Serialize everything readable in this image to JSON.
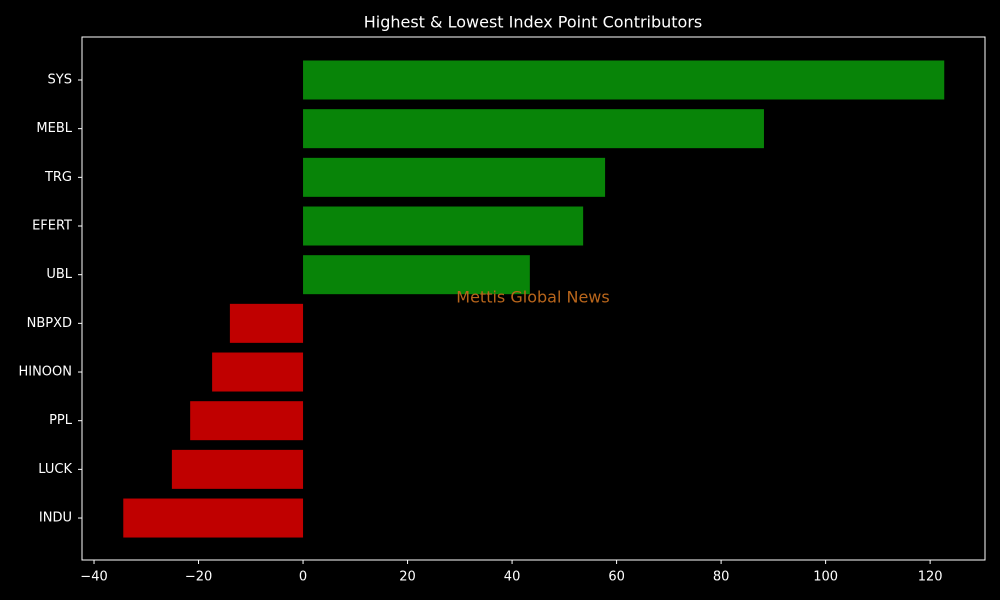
{
  "chart_data": {
    "type": "barh",
    "title": "Highest & Lowest Index Point Contributors",
    "annotation": "Mettis Global News",
    "categories": [
      "SYS",
      "MEBL",
      "TRG",
      "EFERT",
      "UBL",
      "NBPXD",
      "HINOON",
      "PPL",
      "LUCK",
      "INDU"
    ],
    "values": [
      122.7,
      88.2,
      57.8,
      53.6,
      43.4,
      -14.0,
      -17.4,
      -21.6,
      -25.1,
      -34.4
    ],
    "colors": [
      "#088408",
      "#088408",
      "#088408",
      "#088408",
      "#088408",
      "#c00000",
      "#c00000",
      "#c00000",
      "#c00000",
      "#c00000"
    ],
    "xlim": [
      -42.3,
      130.5
    ],
    "xticks": [
      {
        "value": -40,
        "label": "−40"
      },
      {
        "value": -20,
        "label": "−20"
      },
      0,
      20,
      40,
      60,
      80,
      100,
      120
    ],
    "background": "#000000",
    "annotation_color": "#b8651b"
  }
}
